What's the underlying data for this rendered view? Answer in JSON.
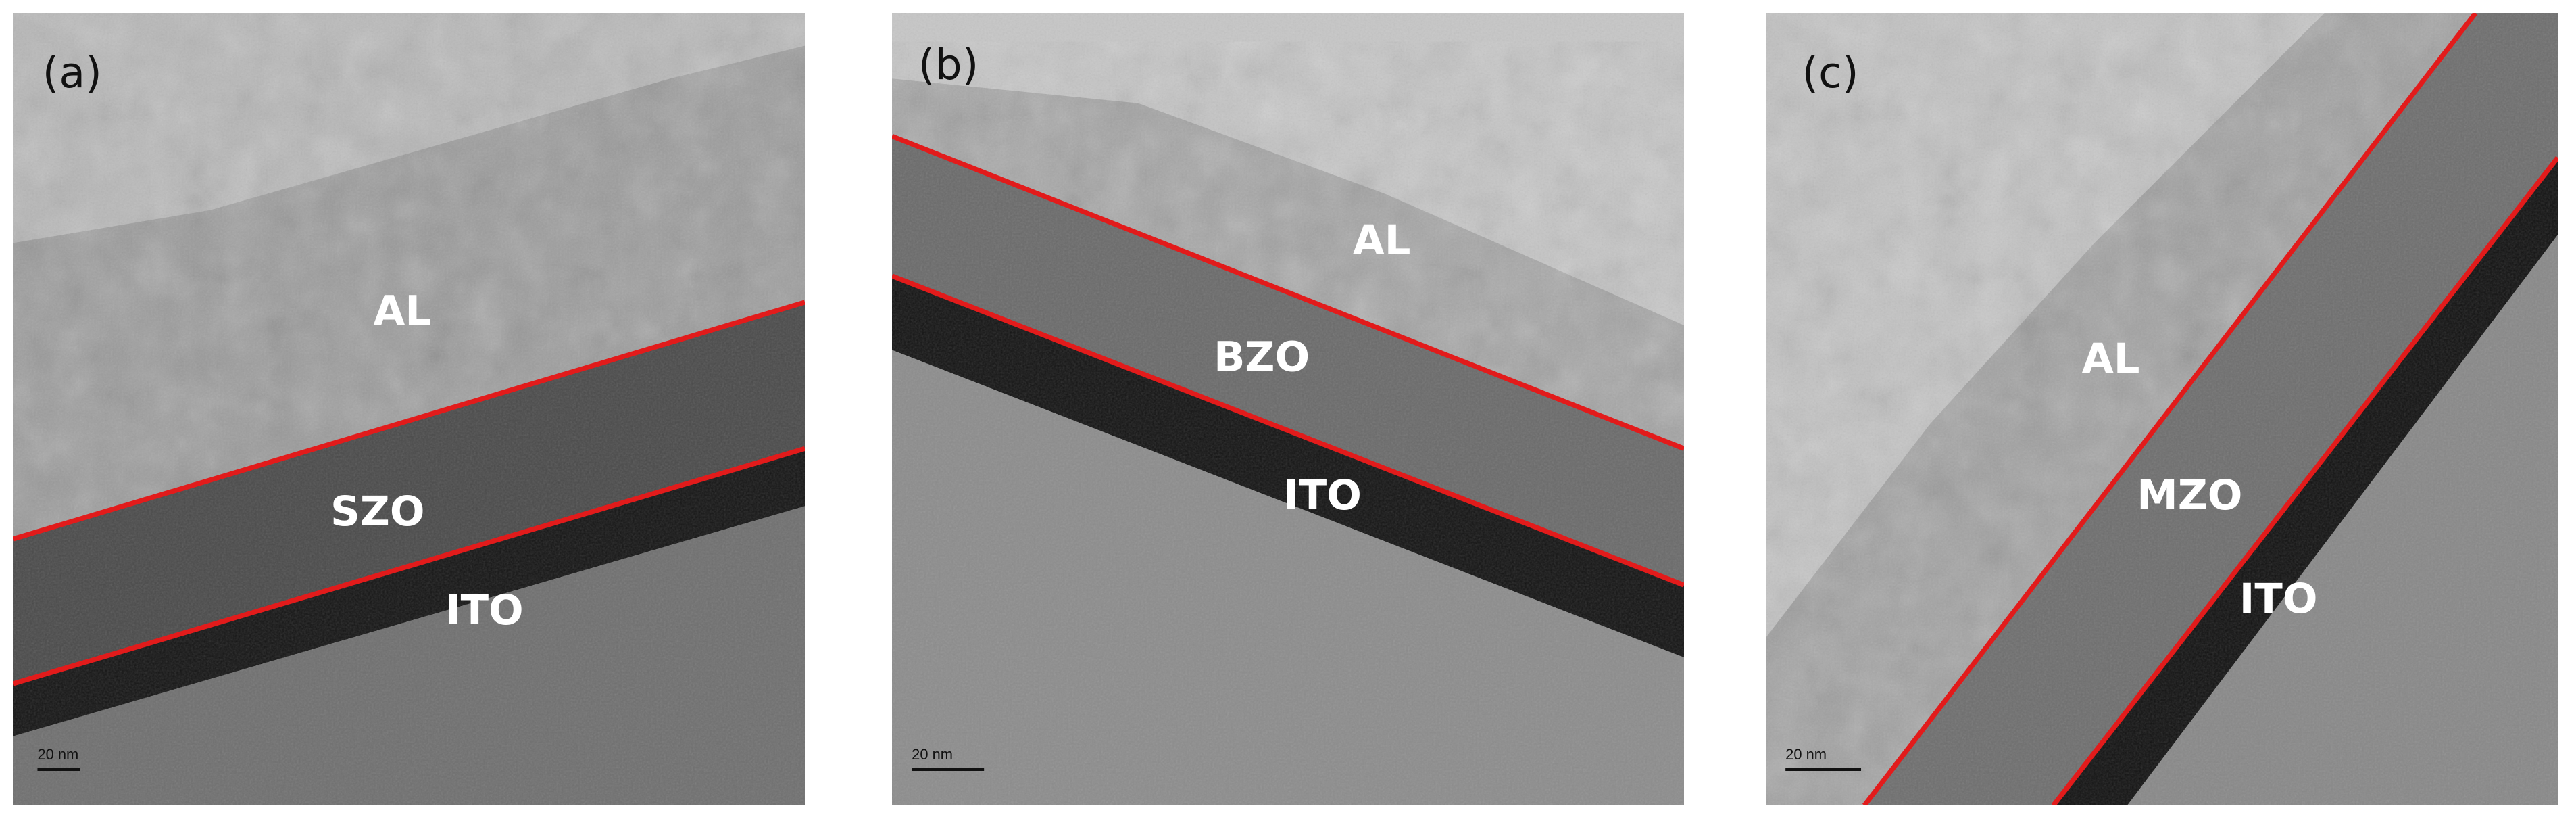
{
  "panels": [
    {
      "tag": "(a)",
      "layers": [
        "AL",
        "SZO",
        "ITO"
      ],
      "scale_bar": "20 nm"
    },
    {
      "tag": "(b)",
      "layers": [
        "AL",
        "BZO",
        "ITO"
      ],
      "scale_bar": "20 nm"
    },
    {
      "tag": "(c)",
      "layers": [
        "AL",
        "MZO",
        "ITO"
      ],
      "scale_bar": "20 nm"
    }
  ]
}
